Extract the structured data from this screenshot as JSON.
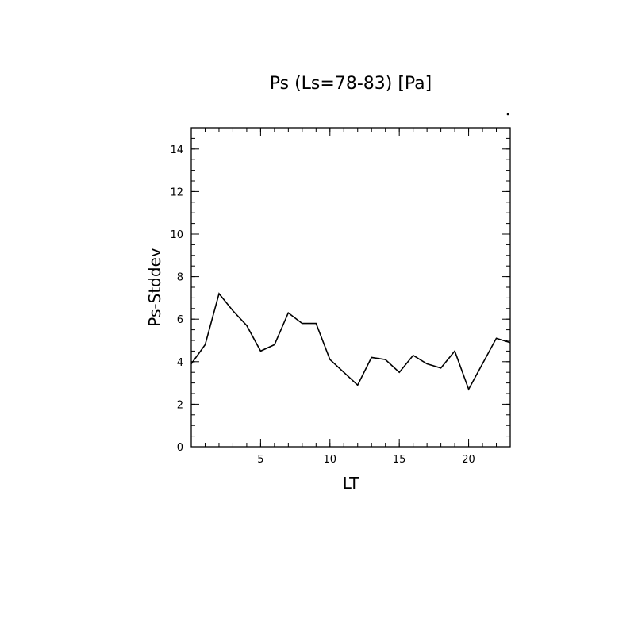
{
  "chart_data": {
    "type": "line",
    "title": "Ps (Ls=78-83) [Pa]",
    "xlabel": "LT",
    "ylabel": "Ps-Stddev",
    "xlim": [
      0,
      23
    ],
    "ylim": [
      0,
      15
    ],
    "x_ticks": [
      5,
      10,
      15,
      20
    ],
    "y_ticks": [
      0,
      2,
      4,
      6,
      8,
      10,
      12,
      14
    ],
    "x_minor_step": 1,
    "y_minor_step": 0.5,
    "grid": false,
    "series": [
      {
        "color": "#000000",
        "x": [
          0,
          1,
          2,
          3,
          4,
          5,
          6,
          7,
          8,
          9,
          10,
          11,
          12,
          13,
          14,
          15,
          16,
          17,
          18,
          19,
          20,
          21,
          22,
          23
        ],
        "y": [
          3.9,
          4.8,
          7.2,
          6.4,
          5.7,
          4.5,
          4.8,
          6.3,
          5.8,
          5.8,
          4.1,
          3.5,
          2.9,
          4.2,
          4.1,
          3.5,
          4.3,
          3.9,
          3.7,
          4.5,
          2.7,
          3.9,
          5.1,
          4.9
        ]
      }
    ]
  }
}
